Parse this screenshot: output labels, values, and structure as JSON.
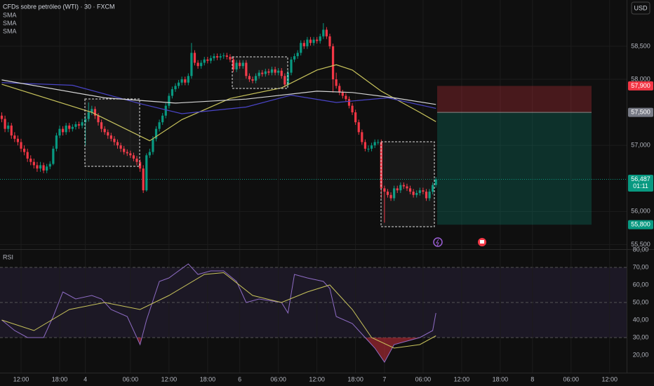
{
  "chart_data": [
    {
      "type": "candlestick",
      "title": "CFDs sobre petróleo (WTI) · 30 · FXCM",
      "currency": "USD",
      "up_color": "#089981",
      "down_color": "#f23645",
      "xlim": [
        -0.55,
        194.3
      ],
      "ylim": [
        55430,
        59200
      ],
      "yticks": [
        {
          "value": 55500,
          "label": "55,500"
        },
        {
          "value": 56000,
          "label": "56,000"
        },
        {
          "value": 57000,
          "label": "57,000"
        },
        {
          "value": 58000,
          "label": "58,000"
        },
        {
          "value": 58500,
          "label": "58,500"
        }
      ],
      "tags": [
        {
          "value": 57900,
          "label": "57,900",
          "color": "#f23645"
        },
        {
          "value": 57500,
          "label": "57,500",
          "color": "#787b86"
        },
        {
          "value": 56487,
          "label": "56,487",
          "color": "#089981"
        },
        {
          "value": 55800,
          "label": "55,800",
          "color": "#089981"
        }
      ],
      "countdown": "01:11",
      "series": [
        {
          "name": "SMA",
          "color": "#c9c45c",
          "x": [
            0,
            28,
            46,
            56,
            71,
            87,
            98,
            104,
            109,
            118,
            130,
            135
          ],
          "values": [
            57925,
            57500,
            57070,
            57390,
            57710,
            57870,
            58140,
            58220,
            58140,
            57820,
            57500,
            57360
          ]
        },
        {
          "name": "SMA",
          "color": "#4a45c8",
          "x": [
            0,
            22,
            44,
            56,
            76,
            90,
            104,
            120,
            135
          ],
          "values": [
            57950,
            57910,
            57620,
            57480,
            57580,
            57760,
            57650,
            57720,
            57560
          ]
        },
        {
          "name": "SMA",
          "color": "#d6d6d6",
          "x": [
            0,
            32,
            54,
            76,
            98,
            109,
            122,
            135
          ],
          "values": [
            57990,
            57720,
            57640,
            57700,
            57820,
            57800,
            57720,
            57620
          ]
        }
      ],
      "candles": [
        [
          57450,
          57500,
          57350,
          57400
        ],
        [
          57400,
          57450,
          57200,
          57250
        ],
        [
          57250,
          57350,
          57200,
          57300
        ],
        [
          57300,
          57340,
          57100,
          57150
        ],
        [
          57150,
          57200,
          57050,
          57100
        ],
        [
          57100,
          57150,
          57000,
          57050
        ],
        [
          57050,
          57100,
          56900,
          56950
        ],
        [
          56950,
          57000,
          56850,
          56900
        ],
        [
          56900,
          56950,
          56750,
          56800
        ],
        [
          56800,
          56850,
          56700,
          56750
        ],
        [
          56750,
          56800,
          56650,
          56700
        ],
        [
          56700,
          56750,
          56600,
          56650
        ],
        [
          56650,
          56750,
          56600,
          56700
        ],
        [
          56700,
          56740,
          56580,
          56620
        ],
        [
          56620,
          56720,
          56580,
          56680
        ],
        [
          56680,
          56760,
          56640,
          56720
        ],
        [
          56720,
          56990,
          56700,
          56950
        ],
        [
          56950,
          57190,
          56910,
          57150
        ],
        [
          57150,
          57300,
          57110,
          57250
        ],
        [
          57250,
          57290,
          57150,
          57200
        ],
        [
          57200,
          57340,
          57160,
          57300
        ],
        [
          57300,
          57340,
          57200,
          57250
        ],
        [
          57250,
          57320,
          57210,
          57280
        ],
        [
          57280,
          57360,
          57240,
          57320
        ],
        [
          57320,
          57360,
          57250,
          57300
        ],
        [
          57300,
          57400,
          57260,
          57350
        ],
        [
          57350,
          57450,
          57000,
          57400
        ],
        [
          57400,
          57650,
          57360,
          57500
        ],
        [
          57500,
          57600,
          57460,
          57550
        ],
        [
          57550,
          57590,
          57400,
          57450
        ],
        [
          57450,
          57490,
          57300,
          57350
        ],
        [
          57350,
          57390,
          57200,
          57250
        ],
        [
          57250,
          57290,
          57160,
          57200
        ],
        [
          57200,
          57240,
          57100,
          57150
        ],
        [
          57150,
          57190,
          57060,
          57100
        ],
        [
          57100,
          57140,
          57000,
          57050
        ],
        [
          57050,
          57090,
          56950,
          57000
        ],
        [
          57000,
          57040,
          56900,
          56950
        ],
        [
          56950,
          56990,
          56860,
          56900
        ],
        [
          56900,
          56940,
          56840,
          56880
        ],
        [
          56880,
          56920,
          56810,
          56850
        ],
        [
          56850,
          56890,
          56760,
          56800
        ],
        [
          56800,
          56840,
          56700,
          56750
        ],
        [
          56750,
          56790,
          56600,
          56650
        ],
        [
          56650,
          56700,
          56280,
          56320
        ],
        [
          56320,
          56880,
          56300,
          56850
        ],
        [
          56850,
          56950,
          56810,
          56900
        ],
        [
          56900,
          57140,
          56860,
          57100
        ],
        [
          57100,
          57290,
          57060,
          57250
        ],
        [
          57250,
          57390,
          57210,
          57350
        ],
        [
          57350,
          57490,
          57310,
          57450
        ],
        [
          57450,
          57640,
          57410,
          57600
        ],
        [
          57600,
          57790,
          57560,
          57750
        ],
        [
          57750,
          57890,
          57710,
          57850
        ],
        [
          57850,
          57940,
          57810,
          57900
        ],
        [
          57900,
          57990,
          57860,
          57950
        ],
        [
          57950,
          58040,
          57910,
          58000
        ],
        [
          58000,
          58040,
          57910,
          57950
        ],
        [
          57950,
          58090,
          57910,
          58050
        ],
        [
          58050,
          58550,
          58010,
          58400
        ],
        [
          58400,
          58440,
          58210,
          58250
        ],
        [
          58250,
          58290,
          58160,
          58200
        ],
        [
          58200,
          58290,
          58160,
          58250
        ],
        [
          58250,
          58340,
          58210,
          58300
        ],
        [
          58300,
          58340,
          58240,
          58280
        ],
        [
          58280,
          58360,
          58240,
          58320
        ],
        [
          58320,
          58390,
          58280,
          58350
        ],
        [
          58350,
          58390,
          58290,
          58330
        ],
        [
          58330,
          58390,
          58290,
          58350
        ],
        [
          58350,
          58400,
          58310,
          58360
        ],
        [
          58360,
          58400,
          58300,
          58340
        ],
        [
          58340,
          58380,
          58260,
          58300
        ],
        [
          58300,
          58340,
          58110,
          58150
        ],
        [
          58150,
          58290,
          58110,
          58250
        ],
        [
          58250,
          58290,
          58160,
          58200
        ],
        [
          58200,
          58290,
          58160,
          58250
        ],
        [
          58250,
          58290,
          58010,
          58050
        ],
        [
          58050,
          58090,
          57960,
          58000
        ],
        [
          58000,
          58040,
          57940,
          57980
        ],
        [
          57980,
          58090,
          57940,
          58050
        ],
        [
          58050,
          58140,
          58010,
          58100
        ],
        [
          58100,
          58140,
          58040,
          58080
        ],
        [
          58080,
          58160,
          58040,
          58120
        ],
        [
          58120,
          58160,
          58060,
          58100
        ],
        [
          58100,
          58190,
          58060,
          58150
        ],
        [
          58150,
          58190,
          58060,
          58100
        ],
        [
          58100,
          58170,
          58060,
          58130
        ],
        [
          58130,
          58170,
          58010,
          58050
        ],
        [
          58050,
          58090,
          57880,
          57920
        ],
        [
          57920,
          58140,
          57880,
          58100
        ],
        [
          58100,
          58340,
          58060,
          58300
        ],
        [
          58300,
          58390,
          58260,
          58350
        ],
        [
          58350,
          58440,
          58310,
          58400
        ],
        [
          58400,
          58590,
          58360,
          58550
        ],
        [
          58550,
          58590,
          58460,
          58500
        ],
        [
          58500,
          58640,
          58460,
          58600
        ],
        [
          58600,
          58640,
          58510,
          58550
        ],
        [
          58550,
          58640,
          58510,
          58600
        ],
        [
          58600,
          58640,
          58540,
          58580
        ],
        [
          58580,
          58690,
          58540,
          58650
        ],
        [
          58650,
          58850,
          58610,
          58750
        ],
        [
          58750,
          58790,
          58610,
          58650
        ],
        [
          58650,
          58690,
          58460,
          58500
        ],
        [
          58500,
          58540,
          57800,
          58000
        ],
        [
          58000,
          58100,
          57860,
          57900
        ],
        [
          57900,
          57940,
          57760,
          57800
        ],
        [
          57800,
          57840,
          57710,
          57750
        ],
        [
          57750,
          57790,
          57660,
          57700
        ],
        [
          57700,
          57740,
          57560,
          57600
        ],
        [
          57600,
          57640,
          57460,
          57500
        ],
        [
          57500,
          57540,
          57310,
          57350
        ],
        [
          57350,
          57390,
          57160,
          57200
        ],
        [
          57200,
          57240,
          57010,
          57050
        ],
        [
          57050,
          57090,
          56910,
          56950
        ],
        [
          56950,
          57000,
          56900,
          56950
        ],
        [
          56950,
          57040,
          56910,
          57000
        ],
        [
          57000,
          57090,
          56960,
          57050
        ],
        [
          57050,
          57090,
          57010,
          57050
        ],
        [
          57050,
          57090,
          56200,
          56350
        ],
        [
          56350,
          56390,
          55830,
          56300
        ],
        [
          56300,
          56340,
          56210,
          56250
        ],
        [
          56250,
          56290,
          56160,
          56200
        ],
        [
          56200,
          56390,
          56160,
          56350
        ],
        [
          56350,
          56390,
          56280,
          56320
        ],
        [
          56320,
          56440,
          56280,
          56400
        ],
        [
          56400,
          56440,
          56340,
          56380
        ],
        [
          56380,
          56420,
          56310,
          56350
        ],
        [
          56350,
          56390,
          56260,
          56300
        ],
        [
          56300,
          56340,
          56210,
          56250
        ],
        [
          56250,
          56320,
          56210,
          56280
        ],
        [
          56280,
          56360,
          56240,
          56320
        ],
        [
          56320,
          56360,
          56260,
          56300
        ],
        [
          56300,
          56340,
          56160,
          56200
        ],
        [
          56200,
          56340,
          56160,
          56300
        ],
        [
          56300,
          56440,
          56260,
          56400
        ],
        [
          56400,
          56520,
          56360,
          56487
        ]
      ]
    },
    {
      "type": "line",
      "title": "RSI",
      "xlim": [
        -0.55,
        194.3
      ],
      "ylim": [
        10,
        80
      ],
      "yticks": [
        {
          "value": 20,
          "label": "20,00"
        },
        {
          "value": 30,
          "label": "30,00"
        },
        {
          "value": 40,
          "label": "40,00"
        },
        {
          "value": 50,
          "label": "50,00"
        },
        {
          "value": 60,
          "label": "60,00"
        },
        {
          "value": 70,
          "label": "70,00"
        },
        {
          "value": 80,
          "label": "80,00"
        }
      ],
      "levels": [
        70,
        50,
        30
      ],
      "xticks": [
        {
          "value": 6,
          "label": "12:00"
        },
        {
          "value": 18,
          "label": "18:00"
        },
        {
          "value": 26,
          "label": "4"
        },
        {
          "value": 40,
          "label": "06:00"
        },
        {
          "value": 52,
          "label": "12:00"
        },
        {
          "value": 64,
          "label": "18:00"
        },
        {
          "value": 74,
          "label": "6"
        },
        {
          "value": 86,
          "label": "06:00"
        },
        {
          "value": 98,
          "label": "12:00"
        },
        {
          "value": 110,
          "label": "18:00"
        },
        {
          "value": 119,
          "label": "7"
        },
        {
          "value": 131,
          "label": "06:00"
        },
        {
          "value": 143,
          "label": "12:00"
        },
        {
          "value": 155,
          "label": "18:00"
        },
        {
          "value": 165,
          "label": "8"
        },
        {
          "value": 177,
          "label": "06:00"
        },
        {
          "value": 189,
          "label": "12:00"
        }
      ],
      "series": [
        {
          "color": "#8e6cc4",
          "x": [
            0,
            4,
            8,
            13,
            16,
            19,
            23,
            28,
            31,
            34,
            39,
            43,
            45,
            49,
            52,
            58,
            61,
            65,
            69,
            73,
            76,
            80,
            87,
            89,
            91,
            95,
            100,
            102,
            104,
            109,
            113,
            116,
            119,
            122,
            126,
            130,
            134,
            135
          ],
          "values": [
            40,
            34,
            30,
            30,
            42,
            56,
            52,
            54,
            52,
            46,
            42,
            26,
            40,
            62,
            64,
            72,
            66,
            68,
            68,
            62,
            50,
            52,
            50,
            44,
            66,
            64,
            62,
            58,
            42,
            38,
            30,
            24,
            16,
            26,
            28,
            30,
            34,
            44
          ]
        },
        {
          "color": "#c9c45c",
          "x": [
            0,
            10,
            21,
            32,
            43,
            52,
            63,
            69,
            78,
            87,
            95,
            102,
            109,
            115,
            122,
            130,
            135
          ],
          "values": [
            40,
            34,
            46,
            50,
            46,
            54,
            66,
            67,
            54,
            50,
            56,
            60,
            46,
            30,
            24,
            26,
            31
          ]
        }
      ]
    }
  ]
}
